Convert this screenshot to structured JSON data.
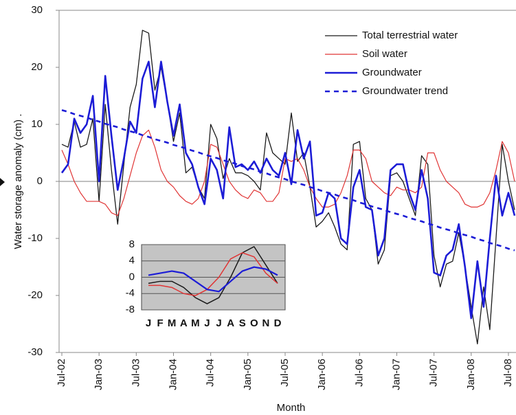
{
  "chart_data": [
    {
      "type": "line",
      "y_label": "Water storage anomaly (cm) .",
      "x_label": "Month",
      "categories": [
        "Jul-02",
        null,
        null,
        null,
        null,
        null,
        "Jan-03",
        null,
        null,
        null,
        null,
        null,
        "Jul-03",
        null,
        null,
        null,
        null,
        null,
        "Jan-04",
        null,
        null,
        null,
        null,
        null,
        "Jul-04",
        null,
        null,
        null,
        null,
        null,
        "Jan-05",
        null,
        null,
        null,
        null,
        null,
        "Jul-05",
        null,
        null,
        null,
        null,
        null,
        "Jan-06",
        null,
        null,
        null,
        null,
        null,
        "Jul-06",
        null,
        null,
        null,
        null,
        null,
        "Jan-07",
        null,
        null,
        null,
        null,
        null,
        "Jul-07",
        null,
        null,
        null,
        null,
        null,
        "Jan-08",
        null,
        null,
        null,
        null,
        null,
        "Jul-08",
        null
      ],
      "ylim": [
        -30,
        30
      ],
      "yticks": [
        -30,
        -20,
        -10,
        0,
        10,
        20,
        30
      ],
      "legend": "upper right",
      "series": [
        {
          "name": "Total terrestrial water",
          "color": "#1a1a1a",
          "width": 1.3,
          "dashed": false,
          "values": [
            6.5,
            6,
            10.5,
            6,
            6.5,
            11,
            -3.5,
            13.5,
            2,
            -7.5,
            3,
            13,
            17,
            26.5,
            26,
            16,
            20,
            14,
            7,
            12,
            1.5,
            2.5,
            -1,
            -3,
            10,
            7.5,
            0.5,
            4,
            1.5,
            1.5,
            1,
            0,
            -1.5,
            8.5,
            5,
            4,
            3,
            12,
            3.5,
            5,
            -1,
            -8,
            -7,
            -5.5,
            -8,
            -11,
            -12,
            6.5,
            7,
            -3,
            -5,
            -14.5,
            -12,
            1,
            1.5,
            0,
            -3,
            -6,
            4.5,
            3,
            -13,
            -18.5,
            -14.5,
            -14,
            -9,
            -15,
            -22,
            -28.5,
            -18.5,
            -26,
            -10,
            6.5,
            0,
            -5
          ]
        },
        {
          "name": "Soil water",
          "color": "#e03434",
          "width": 1.2,
          "dashed": false,
          "values": [
            5.5,
            3,
            0,
            -2,
            -3.5,
            -3.5,
            -3.5,
            -4,
            -5.5,
            -6,
            -3,
            1,
            5,
            8,
            9,
            6,
            2,
            0,
            -1,
            -2.5,
            -3.5,
            -4,
            -3,
            0,
            6.5,
            6,
            3,
            0,
            -1.5,
            -2.5,
            -3,
            -1.5,
            -2,
            -3.5,
            -3.5,
            -2,
            4,
            3.5,
            4,
            2,
            -1,
            -3,
            -4.5,
            -4.5,
            -4,
            -2,
            1,
            5.5,
            5.5,
            4,
            0,
            -1,
            -2,
            -2.5,
            -1,
            -1.5,
            -1.5,
            -2,
            -1,
            5,
            5,
            2,
            0,
            -1,
            -2,
            -4,
            -4.5,
            -4.5,
            -4,
            -2,
            2,
            7,
            5,
            0
          ]
        },
        {
          "name": "Groundwater",
          "color": "#1c1cd6",
          "width": 2.6,
          "dashed": false,
          "values": [
            1.5,
            3,
            11,
            8.5,
            10,
            15,
            0,
            18.5,
            8,
            -1.5,
            4,
            10.5,
            8.5,
            18,
            21,
            13,
            21,
            14,
            8,
            13.5,
            5,
            3,
            -1,
            -4,
            4,
            2,
            -3,
            9.5,
            2.5,
            3,
            2,
            3.5,
            1.5,
            4,
            2,
            1,
            5,
            -0.5,
            9,
            4,
            7,
            -6,
            -5.5,
            -2,
            -3,
            -10,
            -11,
            -1,
            2,
            -4.5,
            -5,
            -13,
            -10,
            2,
            3,
            3,
            -2,
            -5,
            2,
            -3,
            -16,
            -16.5,
            -13,
            -12,
            -7.5,
            -15,
            -24,
            -14,
            -22,
            -10,
            1,
            -6,
            -2,
            -6
          ]
        },
        {
          "name": "Groundwater trend",
          "color": "#1c1cd6",
          "width": 2.6,
          "dashed": true,
          "values": [
            12.5,
            12.2,
            11.8,
            11.5,
            11.2,
            10.8,
            10.5,
            10.1,
            9.8,
            9.5,
            9.1,
            8.8,
            8.5,
            8.1,
            7.8,
            7.4,
            7.1,
            6.8,
            6.4,
            6.1,
            5.8,
            5.4,
            5.1,
            4.7,
            4.4,
            4.1,
            3.7,
            3.4,
            3.1,
            2.7,
            2.4,
            2.1,
            1.7,
            1.4,
            1.0,
            0.7,
            0.4,
            0.0,
            -0.3,
            -0.6,
            -1.0,
            -1.3,
            -1.7,
            -2.0,
            -2.3,
            -2.7,
            -3.0,
            -3.3,
            -3.7,
            -4.0,
            -4.4,
            -4.7,
            -5.0,
            -5.4,
            -5.7,
            -6.0,
            -6.4,
            -6.7,
            -7.0,
            -7.4,
            -7.7,
            -8.1,
            -8.4,
            -8.7,
            -9.1,
            -9.4,
            -9.7,
            -10.1,
            -10.4,
            -10.8,
            -11.1,
            -11.4,
            -11.8,
            -12.1
          ]
        }
      ]
    },
    {
      "type": "line",
      "categories": [
        "J",
        "F",
        "M",
        "A",
        "M",
        "J",
        "J",
        "A",
        "S",
        "O",
        "N",
        "D"
      ],
      "ylim": [
        -8,
        8
      ],
      "yticks": [
        -8,
        -4,
        0,
        4,
        8
      ],
      "grid": true,
      "background": "#c4c4c4",
      "series": [
        {
          "color": "#1a1a1a",
          "width": 1.5,
          "values": [
            -1.5,
            -1,
            -1,
            -2.5,
            -5,
            -6.5,
            -5,
            0,
            6,
            7.5,
            3,
            -1.5
          ]
        },
        {
          "color": "#e03434",
          "width": 1.5,
          "values": [
            -2,
            -2,
            -2.5,
            -4,
            -4.5,
            -3,
            0,
            4.5,
            6,
            5,
            1,
            -1.5
          ]
        },
        {
          "color": "#1c1cd6",
          "width": 2.2,
          "values": [
            0.5,
            1,
            1.5,
            1,
            -1,
            -3,
            -3.5,
            -1,
            1.5,
            2.5,
            2,
            0.5
          ]
        }
      ]
    }
  ]
}
